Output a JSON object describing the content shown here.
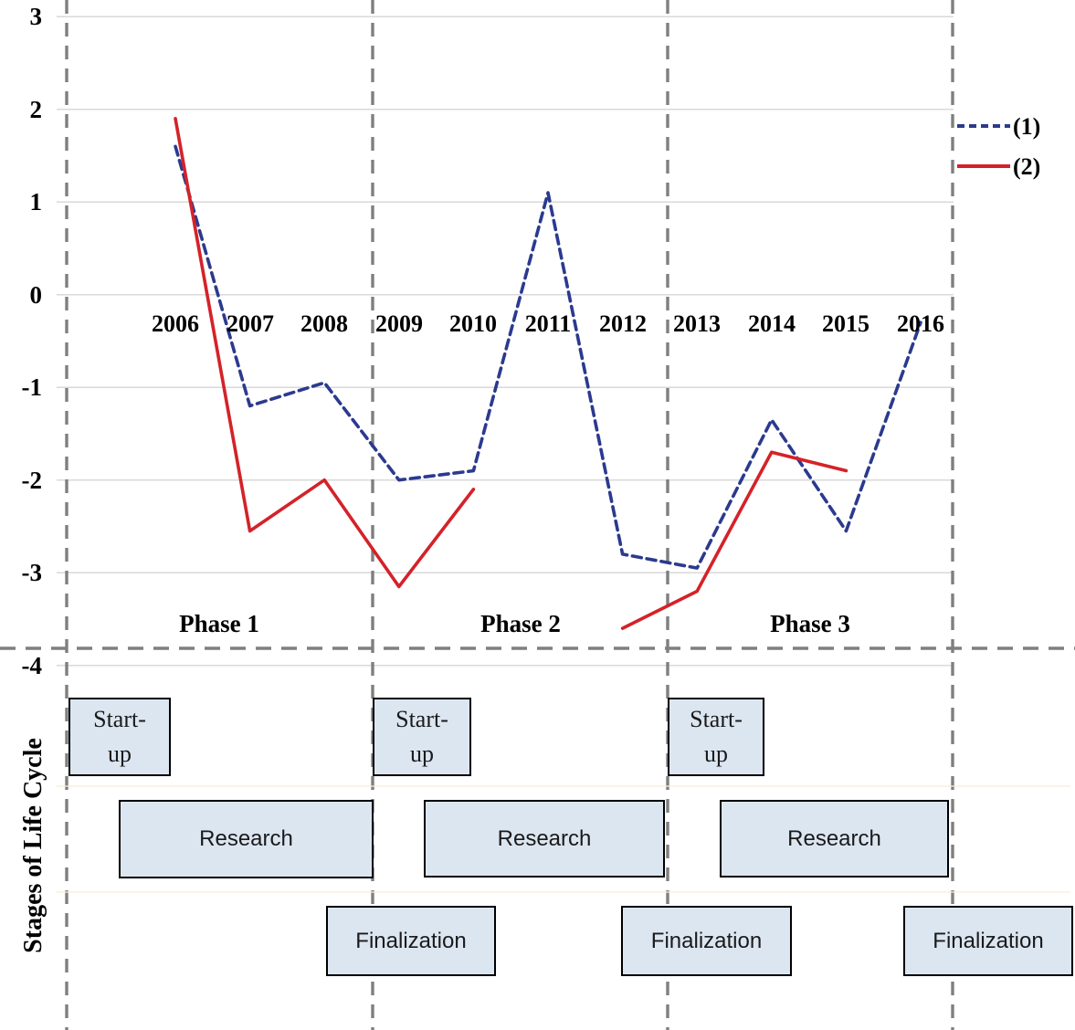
{
  "chart_data": {
    "type": "line",
    "title": "",
    "xlabel": "",
    "ylabel": "",
    "x": [
      2006,
      2007,
      2008,
      2009,
      2010,
      2011,
      2012,
      2013,
      2014,
      2015,
      2016
    ],
    "series": [
      {
        "name": "(1)",
        "color": "#2b3a8f",
        "line_style": "dashed",
        "values": [
          1.6,
          -1.2,
          -0.95,
          -2.0,
          -1.9,
          1.1,
          -2.8,
          -2.95,
          -1.35,
          -2.55,
          -0.3
        ]
      },
      {
        "name": "(2)",
        "color": "#d42229",
        "line_style": "solid",
        "values": [
          1.9,
          -2.55,
          -2.0,
          -3.15,
          -2.1,
          null,
          -3.6,
          -3.2,
          -1.7,
          -1.9,
          null
        ]
      }
    ],
    "ylim": [
      -4,
      3
    ],
    "yticks": [
      3,
      2,
      1,
      0,
      -1,
      -2,
      -3,
      -4
    ],
    "grid": true,
    "legend_position": "top-right",
    "phase_annotations": [
      "Phase 1",
      "Phase 2",
      "Phase 3"
    ]
  },
  "y_axis": {
    "tick_labels": [
      "3",
      "2",
      "1",
      "0",
      "-1",
      "-2",
      "-3",
      "-4"
    ]
  },
  "x_axis": {
    "tick_labels": [
      "2006",
      "2007",
      "2008",
      "2009",
      "2010",
      "2011",
      "2012",
      "2013",
      "2014",
      "2015",
      "2016"
    ]
  },
  "legend": {
    "items": [
      {
        "label": "(1)"
      },
      {
        "label": "(2)"
      }
    ]
  },
  "phases": [
    {
      "label": "Phase 1"
    },
    {
      "label": "Phase 2"
    },
    {
      "label": "Phase 3"
    }
  ],
  "stages": {
    "axis_title": "Stages of Life Cycle",
    "boxes": [
      {
        "phase": "Phase 1",
        "stage": "Start-up"
      },
      {
        "phase": "Phase 1",
        "stage": "Research"
      },
      {
        "phase": "Phase 1",
        "stage": "Finalization"
      },
      {
        "phase": "Phase 2",
        "stage": "Start-up"
      },
      {
        "phase": "Phase 2",
        "stage": "Research"
      },
      {
        "phase": "Phase 2",
        "stage": "Finalization"
      },
      {
        "phase": "Phase 3",
        "stage": "Start-up"
      },
      {
        "phase": "Phase 3",
        "stage": "Research"
      },
      {
        "phase": "Phase 3",
        "stage": "Finalization"
      }
    ]
  },
  "colors": {
    "series1": "#2b3a8f",
    "series2": "#d42229",
    "gridline": "#d9d9d9",
    "divider": "#7f7f7f",
    "stage_box_fill": "#dce6f1",
    "stage_box_border": "#000000"
  }
}
